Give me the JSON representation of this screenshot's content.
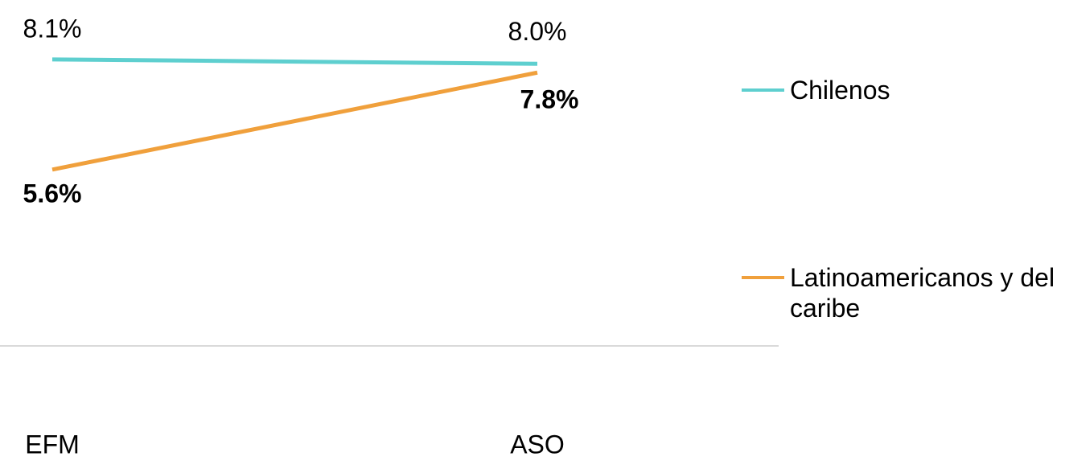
{
  "chart_data": {
    "type": "line",
    "categories": [
      "EFM",
      "ASO"
    ],
    "series": [
      {
        "name": "Chilenos",
        "color": "#5ecfcf",
        "values": [
          8.1,
          8.0
        ],
        "value_labels": [
          "8.1%",
          "8.0%"
        ]
      },
      {
        "name": "Latinoamericanos y del caribe",
        "color": "#f0a03c",
        "values": [
          5.6,
          7.8
        ],
        "value_labels": [
          "5.6%",
          "7.8%"
        ]
      }
    ],
    "ylim": [
      1.6,
      9.0
    ],
    "legend": "right"
  }
}
